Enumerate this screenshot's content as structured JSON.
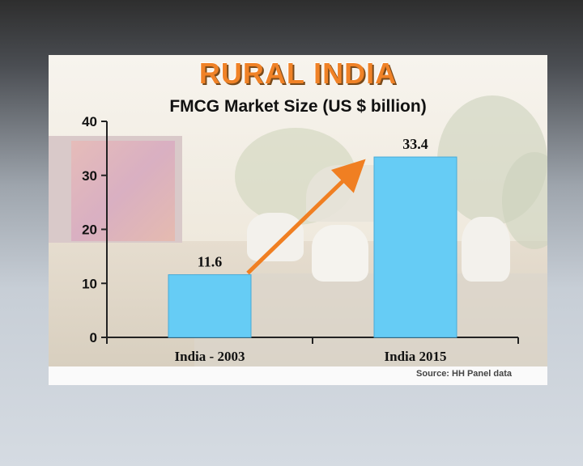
{
  "slide": {
    "title": "RURAL INDIA",
    "subtitle": "FMCG Market Size (US $ billion)",
    "source": "Source: HH Panel data"
  },
  "colors": {
    "bar": "#66ccf5",
    "bar_stroke": "#4aaad6",
    "arrow": "#f07f22",
    "title": "#f08227"
  },
  "chart_data": {
    "type": "bar",
    "title": "FMCG Market Size (US $ billion)",
    "categories": [
      "India - 2003",
      "India 2015"
    ],
    "values": [
      11.6,
      33.4
    ],
    "data_labels": [
      "11.6",
      "33.4"
    ],
    "yticks": [
      0,
      10,
      20,
      30,
      40
    ],
    "ylim": [
      0,
      40
    ],
    "xlabel": "",
    "ylabel": "",
    "grid": false,
    "legend": "none",
    "annotations": [
      "growth arrow from India - 2003 to India 2015"
    ]
  }
}
